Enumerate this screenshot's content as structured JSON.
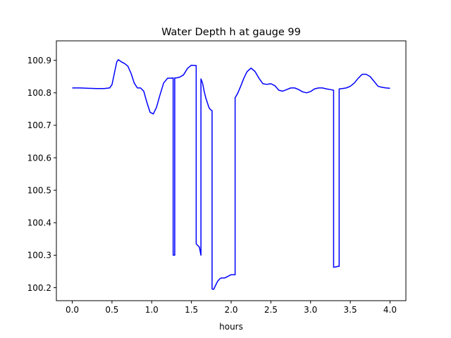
{
  "chart_data": {
    "type": "line",
    "title": "Water Depth h at gauge 99",
    "xlabel": "hours",
    "ylabel": "",
    "xlim": [
      -0.2,
      4.2
    ],
    "ylim": [
      100.16,
      100.96
    ],
    "xticks": [
      0.0,
      0.5,
      1.0,
      1.5,
      2.0,
      2.5,
      3.0,
      3.5,
      4.0
    ],
    "xtick_labels": [
      "0.0",
      "0.5",
      "1.0",
      "1.5",
      "2.0",
      "2.5",
      "3.0",
      "3.5",
      "4.0"
    ],
    "yticks": [
      100.2,
      100.3,
      100.4,
      100.5,
      100.6,
      100.7,
      100.8,
      100.9
    ],
    "ytick_labels": [
      "100.2",
      "100.3",
      "100.4",
      "100.5",
      "100.6",
      "100.7",
      "100.8",
      "100.9"
    ],
    "grid": false,
    "series": [
      {
        "color": "#0000ff",
        "x": [
          0.0,
          0.1,
          0.2,
          0.3,
          0.4,
          0.47,
          0.5,
          0.53,
          0.56,
          0.58,
          0.62,
          0.66,
          0.7,
          0.74,
          0.78,
          0.82,
          0.86,
          0.9,
          0.94,
          0.98,
          1.02,
          1.06,
          1.1,
          1.15,
          1.2,
          1.25,
          1.27,
          1.27,
          1.29,
          1.29,
          1.31,
          1.35,
          1.4,
          1.45,
          1.5,
          1.54,
          1.55,
          1.56,
          1.56,
          1.58,
          1.6,
          1.62,
          1.62,
          1.64,
          1.66,
          1.68,
          1.7,
          1.72,
          1.74,
          1.76,
          1.76,
          1.78,
          1.8,
          1.83,
          1.86,
          1.88,
          1.92,
          1.96,
          2.0,
          2.03,
          2.05,
          2.05,
          2.08,
          2.12,
          2.16,
          2.2,
          2.25,
          2.3,
          2.35,
          2.4,
          2.45,
          2.5,
          2.55,
          2.6,
          2.65,
          2.7,
          2.75,
          2.8,
          2.85,
          2.9,
          2.95,
          3.0,
          3.05,
          3.1,
          3.15,
          3.2,
          3.25,
          3.29,
          3.29,
          3.32,
          3.35,
          3.36,
          3.36,
          3.4,
          3.45,
          3.5,
          3.55,
          3.6,
          3.65,
          3.7,
          3.75,
          3.8,
          3.85,
          3.9,
          3.95,
          4.0
        ],
        "y": [
          100.815,
          100.815,
          100.814,
          100.813,
          100.813,
          100.815,
          100.825,
          100.86,
          100.895,
          100.902,
          100.895,
          100.89,
          100.882,
          100.86,
          100.83,
          100.815,
          100.815,
          100.805,
          100.77,
          100.74,
          100.735,
          100.755,
          100.79,
          100.83,
          100.845,
          100.845,
          100.846,
          100.3,
          100.3,
          100.846,
          100.846,
          100.848,
          100.855,
          100.875,
          100.885,
          100.884,
          100.884,
          100.884,
          100.335,
          100.33,
          100.325,
          100.3,
          100.843,
          100.83,
          100.805,
          100.785,
          100.77,
          100.755,
          100.748,
          100.745,
          100.196,
          100.195,
          100.205,
          100.22,
          100.228,
          100.23,
          100.23,
          100.235,
          100.24,
          100.24,
          100.24,
          100.785,
          100.797,
          100.82,
          100.845,
          100.865,
          100.876,
          100.866,
          100.845,
          100.828,
          100.826,
          100.828,
          100.822,
          100.808,
          100.805,
          100.81,
          100.815,
          100.815,
          100.81,
          100.803,
          100.8,
          100.804,
          100.812,
          100.815,
          100.815,
          100.812,
          100.81,
          100.808,
          100.263,
          100.264,
          100.266,
          100.266,
          100.812,
          100.813,
          100.815,
          100.82,
          100.83,
          100.845,
          100.857,
          100.857,
          100.85,
          100.835,
          100.82,
          100.817,
          100.815,
          100.814
        ]
      }
    ]
  }
}
